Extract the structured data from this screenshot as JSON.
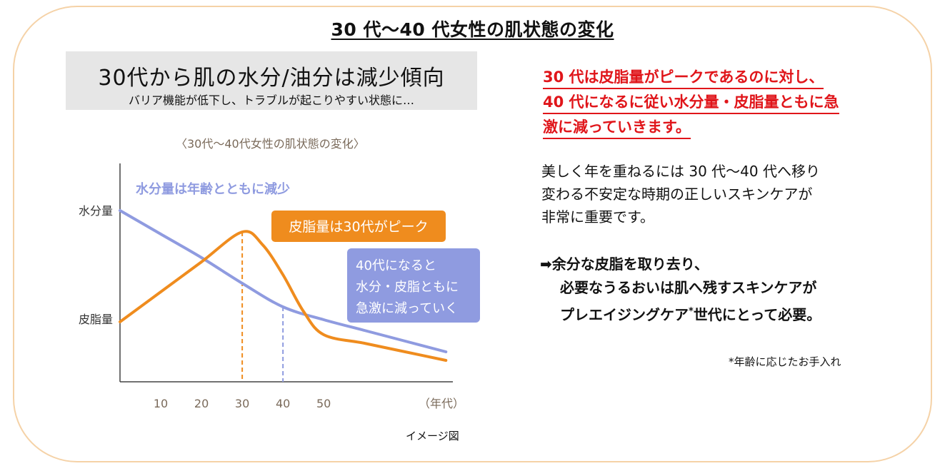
{
  "title": "30 代〜40 代女性の肌状態の変化",
  "headline_box": {
    "title": "30代から肌の水分/油分は減少傾向",
    "subtitle": "バリア機能が低下し、トラブルが起こりやすい状態に…"
  },
  "chart_caption": "〈30代〜40代女性の肌状態の変化〉",
  "image_caption": "イメージ図",
  "chart_data": {
    "type": "line",
    "x_ticks": [
      10,
      20,
      30,
      40,
      50
    ],
    "x_unit_label": "（年代）",
    "y_labels": {
      "water": "水分量",
      "oil": "皮脂量"
    },
    "series": [
      {
        "key": "water",
        "color": "#8f9be0",
        "x": [
          0,
          10,
          20,
          30,
          40,
          50,
          60,
          70,
          80
        ],
        "y": [
          80,
          69,
          58,
          46,
          35,
          29,
          24,
          19,
          14
        ]
      },
      {
        "key": "oil",
        "color": "#ef8c1e",
        "x": [
          0,
          10,
          20,
          30,
          35,
          40,
          45,
          50,
          60,
          70,
          80
        ],
        "y": [
          28,
          42,
          56,
          70,
          64,
          50,
          33,
          22,
          18,
          14,
          10
        ]
      }
    ],
    "peak_markers": [
      {
        "x": 30,
        "color": "#ef8c1e",
        "y": 70
      },
      {
        "x": 40,
        "color": "#8f9be0",
        "y": 35
      }
    ],
    "ylim": [
      0,
      100
    ],
    "xlim": [
      0,
      81
    ],
    "annotations": {
      "water_label": {
        "text": "水分量は年齢とともに減少",
        "color": "#8f9be0"
      },
      "oil_label": {
        "text": "皮脂量は30代がピーク",
        "bg": "#ef8c1e"
      },
      "forty_box": {
        "lines": [
          "40代になると",
          "水分・皮脂ともに",
          "急激に減っていく"
        ],
        "bg": "#8f9be0"
      }
    }
  },
  "red_lines": [
    "30 代は皮脂量がピークであるのに対し、",
    "40 代になるに従い水分量・皮脂量ともに急",
    "激に減っていきます。"
  ],
  "body_lines": [
    "美しく年を重ねるには 30 代〜40 代へ移り",
    "変わる不安定な時期の正しいスキンケアが",
    "非常に重要です。"
  ],
  "arrow_block": {
    "line1": "➡余分な皮脂を取り去り、",
    "line2": "必要なうるおいは肌へ残すスキンケアが",
    "line3_pre": "プレエイジングケア",
    "line3_sup": "*",
    "line3_post": "世代にとって必要。"
  },
  "footnote": "*年齢に応じたお手入れ"
}
